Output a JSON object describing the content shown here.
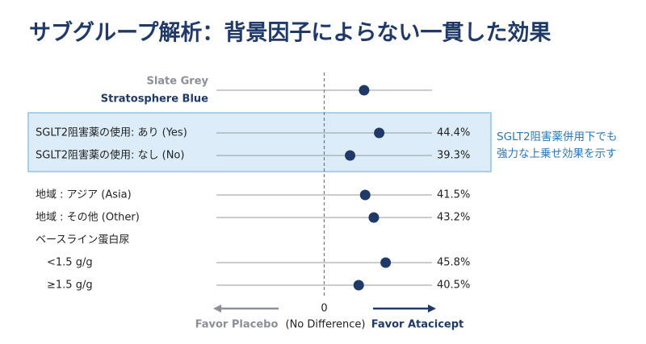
{
  "chart_data": {
    "type": "forest",
    "title": "サブグループ解析：背景因子によらない一貫した効果",
    "rows": [
      {
        "labels": [
          "Slate Grey",
          "Stratosphere Blue"
        ],
        "estimate": 0.37
      },
      {
        "label": "SGLT2阻害薬の使用: あり (Yes)",
        "estimate": 0.51,
        "value_label": "44.4%"
      },
      {
        "label": "SGLT2阻害薬の使用: なし (No)",
        "estimate": 0.24,
        "value_label": "39.3%"
      },
      {
        "label": "地域 : アジア (Asia)",
        "estimate": 0.38,
        "value_label": "41.5%"
      },
      {
        "label": "地域 : その他 (Other)",
        "estimate": 0.46,
        "value_label": "43.2%"
      },
      {
        "label": "ベースライン蛋白尿"
      },
      {
        "label": "<1.5 g/g",
        "estimate": 0.57,
        "value_label": "45.8%"
      },
      {
        "label": "≥1.5 g/g",
        "estimate": 0.32,
        "value_label": "40.5%"
      }
    ],
    "xlim": [
      -1,
      1
    ],
    "xticks": [
      0
    ],
    "reference_label": "(No Difference)",
    "favor_left": "Favor Placebo",
    "favor_right": "Favor Atacicept",
    "annotation": [
      "SGLT2阻害薬併用下でも",
      "強力な上乗せ効果を示す"
    ],
    "color": "#1f3a68"
  }
}
